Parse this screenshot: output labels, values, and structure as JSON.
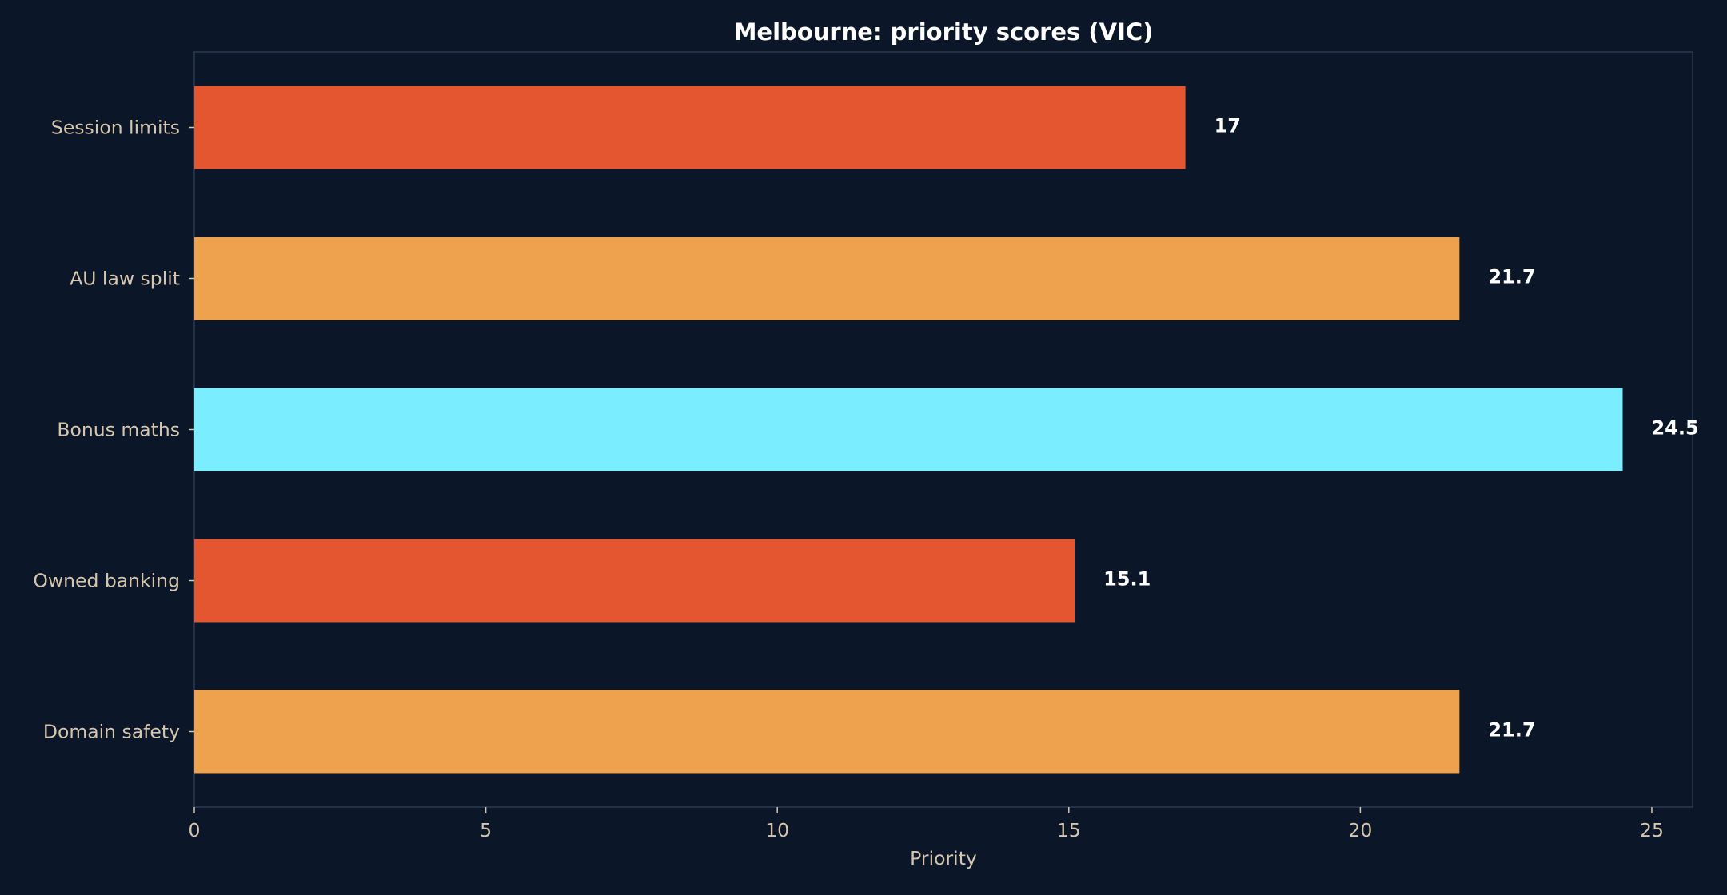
{
  "chart_data": {
    "type": "bar",
    "orientation": "horizontal",
    "title": "Melbourne: priority scores (VIC)",
    "xlabel": "Priority",
    "ylabel": "",
    "categories": [
      "Session limits",
      "AU law split",
      "Bonus maths",
      "Owned banking",
      "Domain safety"
    ],
    "values": [
      17,
      21.7,
      24.5,
      15.1,
      21.7
    ],
    "value_labels": [
      "17",
      "21.7",
      "24.5",
      "15.1",
      "21.7"
    ],
    "bar_colors": [
      "#e4562f",
      "#efa24e",
      "#7aeeff",
      "#e4562f",
      "#efa24e"
    ],
    "xlim": [
      0,
      25.7
    ],
    "xticks": [
      0,
      5,
      10,
      15,
      20,
      25
    ],
    "xtick_labels": [
      "0",
      "5",
      "10",
      "15",
      "20",
      "25"
    ],
    "grid": false,
    "legend": "none",
    "colors": {
      "background": "#0b1628",
      "frame": "#2a3a52",
      "title": "#ffffff",
      "tick_text": "#d6c6ae",
      "value_text": "#ffffff"
    }
  }
}
